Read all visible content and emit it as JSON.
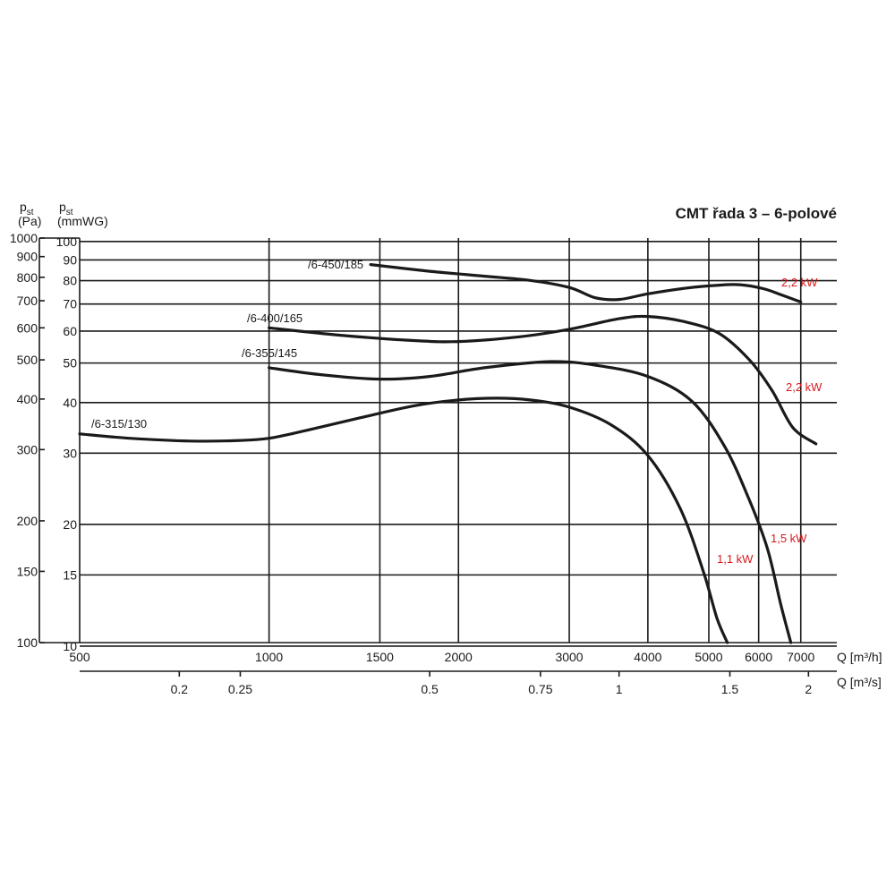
{
  "chart_data": {
    "type": "line",
    "title": "CMT řada 3 – 6-polové",
    "y_scale": "log",
    "x_scale": "log",
    "y_label_pa": {
      "main": "p",
      "sub": "st",
      "unit": "(Pa)"
    },
    "y_label_mmwg": {
      "main": "p",
      "sub": "st",
      "unit": "(mmWG)"
    },
    "x_label_m3h": "Q [m³/h]",
    "x_label_m3s": "Q [m³/s]",
    "xlim": [
      500,
      8000
    ],
    "ylim": [
      100,
      1000
    ],
    "y_ticks_pa": [
      "1000",
      "900",
      "800",
      "700",
      "600",
      "500",
      "400",
      "300",
      "200",
      "150",
      "100"
    ],
    "y_ticks_pa_values": [
      1000,
      900,
      800,
      700,
      600,
      500,
      400,
      300,
      200,
      150,
      100
    ],
    "y_ticks_mmwg": [
      "100",
      "90",
      "80",
      "70",
      "60",
      "50",
      "40",
      "30",
      "20",
      "15",
      "10"
    ],
    "y_ticks_mmwg_values": [
      981,
      883,
      785,
      687,
      589,
      491,
      392,
      294,
      196,
      147,
      98
    ],
    "x_ticks_m3h": [
      "500",
      "1000",
      "1500",
      "2000",
      "3000",
      "4000",
      "5000",
      "6000",
      "7000"
    ],
    "x_ticks_m3h_values": [
      500,
      1000,
      1500,
      2000,
      3000,
      4000,
      5000,
      6000,
      7000
    ],
    "x_ticks_m3s": [
      "0.2",
      "0.25",
      "0.5",
      "0.75",
      "1",
      "1.5",
      "2"
    ],
    "x_ticks_m3s_values": [
      720,
      900,
      1800,
      2700,
      3600,
      5400,
      7200
    ],
    "grid": true,
    "series": [
      {
        "name": "/6-315/130",
        "power": "1,1 kW",
        "points": [
          [
            500,
            328
          ],
          [
            600,
            320
          ],
          [
            750,
            315
          ],
          [
            900,
            316
          ],
          [
            1000,
            320
          ],
          [
            1150,
            335
          ],
          [
            1400,
            360
          ],
          [
            1700,
            385
          ],
          [
            2000,
            398
          ],
          [
            2300,
            402
          ],
          [
            2600,
            398
          ],
          [
            3000,
            382
          ],
          [
            3500,
            345
          ],
          [
            4000,
            290
          ],
          [
            4500,
            215
          ],
          [
            4900,
            150
          ],
          [
            5150,
            115
          ],
          [
            5350,
            100
          ]
        ]
      },
      {
        "name": "/6-355/145",
        "power": "1,5 kW",
        "points": [
          [
            1000,
            478
          ],
          [
            1200,
            460
          ],
          [
            1500,
            448
          ],
          [
            1800,
            455
          ],
          [
            2200,
            478
          ],
          [
            2800,
            495
          ],
          [
            3300,
            485
          ],
          [
            4000,
            455
          ],
          [
            4700,
            395
          ],
          [
            5300,
            305
          ],
          [
            5800,
            225
          ],
          [
            6200,
            170
          ],
          [
            6500,
            125
          ],
          [
            6750,
            100
          ]
        ]
      },
      {
        "name": "/6-400/165",
        "power": "2,2 kW",
        "points": [
          [
            1000,
            600
          ],
          [
            1300,
            575
          ],
          [
            1700,
            558
          ],
          [
            2000,
            555
          ],
          [
            2500,
            570
          ],
          [
            3000,
            595
          ],
          [
            3600,
            632
          ],
          [
            4000,
            640
          ],
          [
            4600,
            620
          ],
          [
            5200,
            580
          ],
          [
            5800,
            500
          ],
          [
            6300,
            420
          ],
          [
            6800,
            340
          ],
          [
            7400,
            310
          ]
        ]
      },
      {
        "name": "/6-450/185",
        "power": "2,2 kW",
        "points": [
          [
            1450,
            860
          ],
          [
            1800,
            828
          ],
          [
            2200,
            805
          ],
          [
            2600,
            786
          ],
          [
            3000,
            755
          ],
          [
            3300,
            712
          ],
          [
            3600,
            705
          ],
          [
            4000,
            728
          ],
          [
            4600,
            752
          ],
          [
            5200,
            765
          ],
          [
            5600,
            767
          ],
          [
            6100,
            750
          ],
          [
            6500,
            725
          ],
          [
            7000,
            695
          ]
        ]
      }
    ]
  }
}
